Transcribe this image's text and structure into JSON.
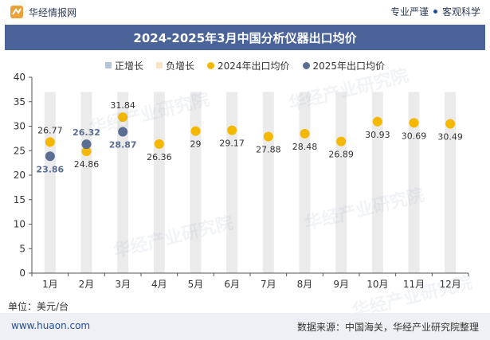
{
  "header": {
    "brand": "华经情报网",
    "tagline_left": "专业严谨",
    "tagline_right": "客观科学"
  },
  "chart_data": {
    "type": "scatter",
    "title": "2024-2025年3月中国分析仪器出口均价",
    "categories": [
      "1月",
      "2月",
      "3月",
      "4月",
      "5月",
      "6月",
      "7月",
      "8月",
      "9月",
      "10月",
      "11月",
      "12月"
    ],
    "legend": [
      "正增长",
      "负增长",
      "2024年出口均价",
      "2025年出口均价"
    ],
    "legend_position": "top",
    "series": [
      {
        "name": "2024年出口均价",
        "color": "#f5b800",
        "values": [
          26.77,
          24.86,
          31.84,
          26.36,
          29,
          29.17,
          27.88,
          28.48,
          26.89,
          30.93,
          30.69,
          30.49
        ]
      },
      {
        "name": "2025年出口均价",
        "color": "#5a6d92",
        "values": [
          23.86,
          26.32,
          28.87
        ]
      }
    ],
    "labels_2024": [
      "26.77",
      "24.86",
      "31.84",
      "26.36",
      "29",
      "29.17",
      "27.88",
      "28.48",
      "26.89",
      "30.93",
      "30.69",
      "30.49"
    ],
    "labels_2025": [
      "23.86",
      "26.32",
      "28.87"
    ],
    "yticks": [
      "0",
      "5",
      "10",
      "15",
      "20",
      "25",
      "30",
      "35",
      "40"
    ],
    "ylim": [
      0,
      40
    ],
    "grid": false,
    "colors": {
      "pos": "#b7c3d8",
      "neg": "#f8e3c8",
      "column": "#ebebeb"
    }
  },
  "unit": "单位：美元/台",
  "footer": {
    "site": "www.huaon.com",
    "source": "数据来源：中国海关，华经产业研究院整理"
  },
  "watermark": "华经产业研究院"
}
